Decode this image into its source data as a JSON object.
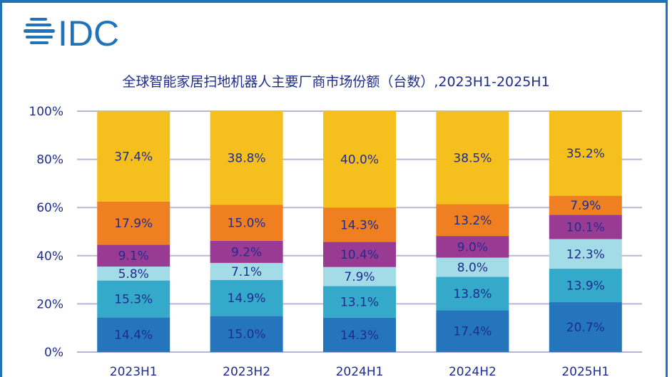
{
  "logo": {
    "text": "IDC",
    "color": "#1f73b8"
  },
  "chart_data": {
    "type": "bar",
    "stacked": true,
    "title": "全球智能家居扫地机器人主要厂商市场份额（台数）,2023H1-2025H1",
    "categories": [
      "2023H1",
      "2023H2",
      "2024H1",
      "2024H2",
      "2025H1"
    ],
    "ylim": [
      0,
      100
    ],
    "yticks": [
      "0%",
      "20%",
      "40%",
      "60%",
      "80%",
      "100%"
    ],
    "grid": true,
    "series": [
      {
        "color": "#2475bb",
        "values": [
          14.4,
          15.0,
          14.3,
          17.4,
          20.7
        ]
      },
      {
        "color": "#35a9c9",
        "values": [
          15.3,
          14.9,
          13.1,
          13.8,
          13.9
        ]
      },
      {
        "color": "#a3dbe6",
        "values": [
          5.8,
          7.1,
          7.9,
          8.0,
          12.3
        ]
      },
      {
        "color": "#9a3b93",
        "values": [
          9.1,
          9.2,
          10.4,
          9.0,
          10.1
        ]
      },
      {
        "color": "#f07f22",
        "values": [
          17.9,
          15.0,
          14.3,
          13.2,
          7.9
        ]
      },
      {
        "color": "#f5c01e",
        "values": [
          37.4,
          38.8,
          40.0,
          38.5,
          35.2
        ]
      }
    ],
    "label_color": "#1f2c8f"
  }
}
